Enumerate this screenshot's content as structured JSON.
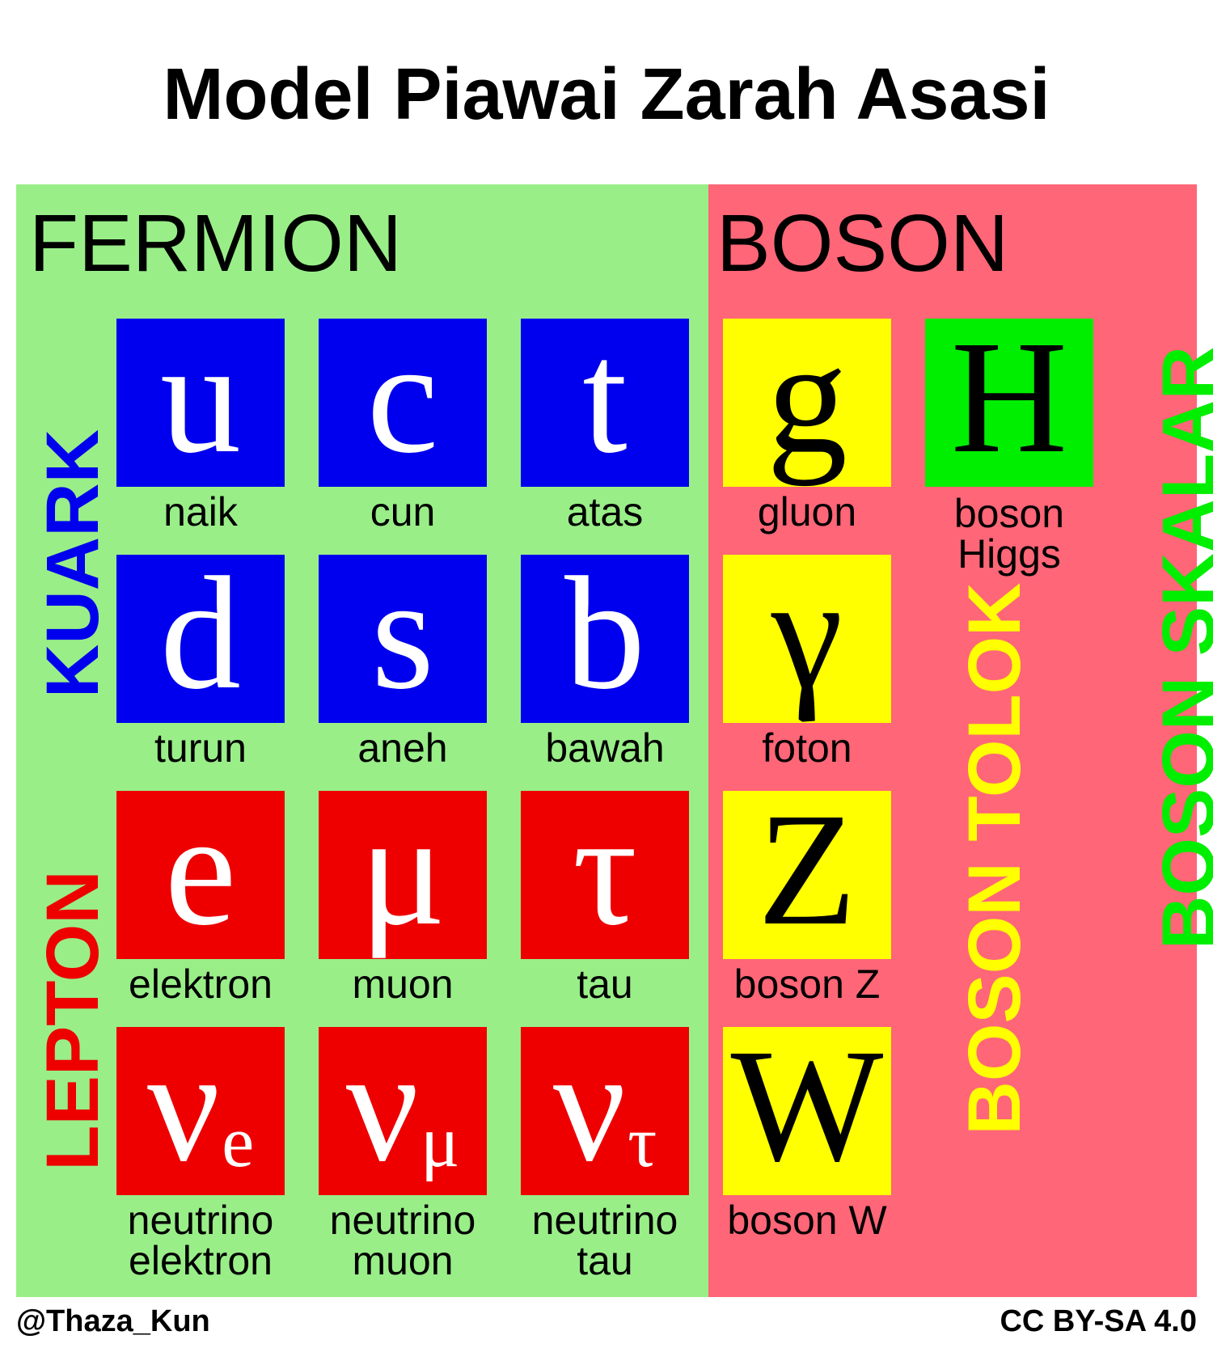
{
  "title": "Model Piawai Zarah Asasi",
  "sections": {
    "fermion": "FERMION",
    "boson": "BOSON"
  },
  "groups": {
    "quark": "KUARK",
    "lepton": "LEPTON",
    "gauge_boson": "BOSON TOLOK",
    "scalar_boson": "BOSON SKALAR"
  },
  "colors": {
    "fermion_bg": "#99ee88",
    "boson_bg": "#ff6677",
    "quark": "#0000ee",
    "lepton": "#ee0000",
    "gauge_boson": "#ffff00",
    "scalar_boson": "#00ee00"
  },
  "quarks": [
    {
      "symbol": "u",
      "name": "naik"
    },
    {
      "symbol": "c",
      "name": "cun"
    },
    {
      "symbol": "t",
      "name": "atas"
    },
    {
      "symbol": "d",
      "name": "turun"
    },
    {
      "symbol": "s",
      "name": "aneh"
    },
    {
      "symbol": "b",
      "name": "bawah"
    }
  ],
  "leptons": [
    {
      "symbol": "e",
      "name": "elektron"
    },
    {
      "symbol": "μ",
      "name": "muon"
    },
    {
      "symbol": "τ",
      "name": "tau"
    },
    {
      "symbol": "ν",
      "subscript": "e",
      "name_line1": "neutrino",
      "name_line2": "elektron"
    },
    {
      "symbol": "ν",
      "subscript": "μ",
      "name_line1": "neutrino",
      "name_line2": "muon"
    },
    {
      "symbol": "ν",
      "subscript": "τ",
      "name_line1": "neutrino",
      "name_line2": "tau"
    }
  ],
  "gauge_bosons": [
    {
      "symbol": "g",
      "name": "gluon"
    },
    {
      "symbol": "γ",
      "name": "foton"
    },
    {
      "symbol": "Z",
      "name": "boson Z"
    },
    {
      "symbol": "W",
      "name": "boson W"
    }
  ],
  "higgs": {
    "symbol": "H",
    "name_line1": "boson",
    "name_line2": "Higgs"
  },
  "footer": {
    "author": "@Thaza_Kun",
    "license": "CC BY-SA 4.0"
  }
}
